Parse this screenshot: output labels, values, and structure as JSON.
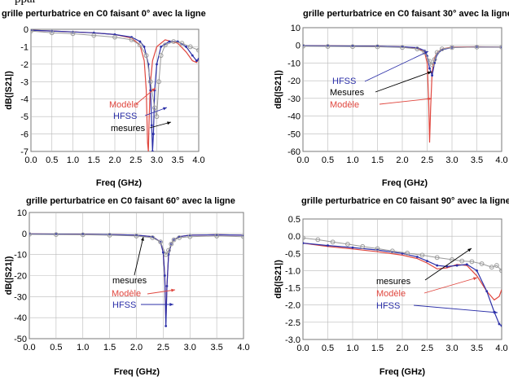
{
  "page": {
    "top_fragment_text": "ppar"
  },
  "colors": {
    "hfss": "#2b2fa8",
    "modele": "#e0473f",
    "mesures": "#9a9a9a",
    "grid": "#b9b9b9",
    "annotation_black": "#000000"
  },
  "chart_data": [
    {
      "type": "line",
      "title": "grille perturbatrice en C0 faisant 0° avec la ligne",
      "xlabel": "Freq (GHz)",
      "ylabel": "dB(|S21|)",
      "xlim": [
        0,
        4
      ],
      "ylim": [
        -7,
        0
      ],
      "xticks": [
        "0.0",
        "0.5",
        "1.0",
        "1.5",
        "2.0",
        "2.5",
        "3.0",
        "3.5",
        "4.0"
      ],
      "yticks": [
        "0",
        "-1",
        "-2",
        "-3",
        "-4",
        "-5",
        "-6",
        "-7"
      ],
      "grid": true,
      "series": [
        {
          "name": "Modèle",
          "x": [
            0,
            0.5,
            1,
            1.5,
            2,
            2.4,
            2.6,
            2.7,
            2.75,
            2.78,
            2.8,
            2.82,
            2.85,
            2.9,
            3.0,
            3.2,
            3.5,
            3.7,
            3.85,
            3.95,
            4.0
          ],
          "y": [
            -0.05,
            -0.1,
            -0.15,
            -0.2,
            -0.3,
            -0.5,
            -0.9,
            -1.8,
            -3.5,
            -6.5,
            -7.0,
            -5.0,
            -3.0,
            -1.8,
            -1.0,
            -0.6,
            -0.8,
            -1.3,
            -1.8,
            -1.9,
            -1.7
          ]
        },
        {
          "name": "HFSS",
          "x": [
            0,
            0.5,
            1,
            1.5,
            2,
            2.4,
            2.6,
            2.7,
            2.8,
            2.85,
            2.88,
            2.9,
            2.92,
            2.95,
            3.0,
            3.1,
            3.3,
            3.5,
            3.7,
            3.85,
            3.95,
            4.0
          ],
          "y": [
            -0.05,
            -0.1,
            -0.15,
            -0.2,
            -0.3,
            -0.45,
            -0.7,
            -1.0,
            -2.0,
            -3.5,
            -5.5,
            -7.0,
            -6.0,
            -3.5,
            -2.0,
            -1.0,
            -0.7,
            -0.7,
            -1.0,
            -1.5,
            -1.8,
            -1.7
          ]
        },
        {
          "name": "mesures",
          "x": [
            0,
            0.5,
            1,
            1.5,
            2,
            2.4,
            2.6,
            2.75,
            2.85,
            2.95,
            3.0,
            3.05,
            3.1,
            3.2,
            3.4,
            3.6,
            3.8,
            4.0
          ],
          "y": [
            -0.1,
            -0.2,
            -0.25,
            -0.35,
            -0.45,
            -0.6,
            -0.9,
            -1.5,
            -3.0,
            -4.5,
            -5.0,
            -3.0,
            -1.5,
            -0.9,
            -0.7,
            -0.8,
            -1.0,
            -1.2
          ]
        }
      ],
      "annotations": [
        {
          "text": "Modèle",
          "color": "#e0473f"
        },
        {
          "text": "HFSS",
          "color": "#2b2fa8"
        },
        {
          "text": "mesures",
          "color": "#000000"
        }
      ]
    },
    {
      "type": "line",
      "title": "grille perturbatrice en C0 faisant 30° avec la ligne",
      "xlabel": "Freq (GHz)",
      "ylabel": "dB(|S21|)",
      "xlim": [
        0,
        4
      ],
      "ylim": [
        -60,
        10
      ],
      "xticks": [
        "0.0",
        "0.5",
        "1.0",
        "1.5",
        "2.0",
        "2.5",
        "3.0",
        "3.5",
        "4.0"
      ],
      "yticks": [
        "10",
        "0",
        "-10",
        "-20",
        "-30",
        "-40",
        "-50",
        "-60"
      ],
      "grid": true,
      "series": [
        {
          "name": "Modèle",
          "x": [
            0,
            0.5,
            1,
            1.5,
            2,
            2.3,
            2.45,
            2.5,
            2.53,
            2.55,
            2.57,
            2.6,
            2.65,
            2.7,
            2.8,
            3.0,
            3.5,
            4.0
          ],
          "y": [
            -0.2,
            -0.3,
            -0.4,
            -0.5,
            -0.8,
            -1.5,
            -4,
            -10,
            -30,
            -55,
            -35,
            -15,
            -7,
            -4,
            -2,
            -1,
            -0.8,
            -1
          ]
        },
        {
          "name": "HFSS",
          "x": [
            0,
            0.5,
            1,
            1.5,
            2,
            2.3,
            2.45,
            2.5,
            2.55,
            2.6,
            2.65,
            2.7,
            2.8,
            3.0,
            3.5,
            4.0
          ],
          "y": [
            -0.2,
            -0.3,
            -0.4,
            -0.5,
            -0.8,
            -1.3,
            -3,
            -6,
            -13,
            -17,
            -10,
            -5,
            -2.5,
            -1.2,
            -0.9,
            -1
          ]
        },
        {
          "name": "Mesures",
          "x": [
            0,
            0.5,
            1,
            1.5,
            2,
            2.3,
            2.45,
            2.55,
            2.6,
            2.65,
            2.7,
            2.8,
            3.0,
            3.5,
            4.0
          ],
          "y": [
            -0.5,
            -0.6,
            -0.7,
            -0.8,
            -1.2,
            -2,
            -4,
            -9,
            -11,
            -8,
            -4,
            -2,
            -1.2,
            -1,
            -1
          ]
        }
      ],
      "annotations": [
        {
          "text": "HFSS",
          "color": "#2b2fa8"
        },
        {
          "text": "Mesures",
          "color": "#000000"
        },
        {
          "text": "Modèle",
          "color": "#e0473f"
        }
      ]
    },
    {
      "type": "line",
      "title": "grille perturbatrice en C0 faisant 60° avec la ligne",
      "xlabel": "Freq (GHz)",
      "ylabel": "dB(|S21|)",
      "xlim": [
        0,
        4
      ],
      "ylim": [
        -50,
        10
      ],
      "xticks": [
        "0.0",
        "0.5",
        "1.0",
        "1.5",
        "2.0",
        "2.5",
        "3.0",
        "3.5",
        "4.0"
      ],
      "yticks": [
        "10",
        "0",
        "-10",
        "-20",
        "-30",
        "-40",
        "-50"
      ],
      "grid": true,
      "series": [
        {
          "name": "Modèle",
          "x": [
            0,
            0.5,
            1,
            1.5,
            2,
            2.3,
            2.45,
            2.5,
            2.53,
            2.55,
            2.57,
            2.6,
            2.65,
            2.7,
            2.8,
            3.0,
            3.5,
            4.0
          ],
          "y": [
            -0.2,
            -0.3,
            -0.4,
            -0.5,
            -0.8,
            -1.5,
            -4,
            -9,
            -20,
            -42,
            -25,
            -10,
            -5,
            -3,
            -1.5,
            -0.8,
            -0.6,
            -0.8
          ]
        },
        {
          "name": "HFSS",
          "x": [
            0,
            0.5,
            1,
            1.5,
            2,
            2.3,
            2.45,
            2.5,
            2.53,
            2.55,
            2.57,
            2.6,
            2.65,
            2.7,
            2.8,
            3.0,
            3.5,
            4.0
          ],
          "y": [
            -0.2,
            -0.3,
            -0.4,
            -0.5,
            -0.8,
            -1.5,
            -4,
            -9,
            -20,
            -44,
            -25,
            -10,
            -5,
            -3,
            -1.5,
            -0.8,
            -0.6,
            -0.8
          ]
        },
        {
          "name": "mesures",
          "x": [
            0,
            0.5,
            1,
            1.5,
            2,
            2.3,
            2.45,
            2.55,
            2.6,
            2.65,
            2.7,
            2.8,
            3.0,
            3.5,
            4.0
          ],
          "y": [
            -0.4,
            -0.5,
            -0.6,
            -0.8,
            -1.2,
            -2,
            -4,
            -10,
            -8,
            -5,
            -3,
            -2,
            -1.5,
            -1.2,
            -1.5
          ]
        }
      ],
      "annotations": [
        {
          "text": "mesures",
          "color": "#000000"
        },
        {
          "text": "Modèle",
          "color": "#e0473f"
        },
        {
          "text": "HFSS",
          "color": "#2b2fa8"
        }
      ]
    },
    {
      "type": "line",
      "title": "grille perturbatrice en C0 faisant 90° avec la ligne",
      "xlabel": "Freq (GHz)",
      "ylabel": "dB(|S21|)",
      "xlim": [
        0,
        4
      ],
      "ylim": [
        -3,
        0.5
      ],
      "xticks": [
        "0.0",
        "0.5",
        "1.0",
        "1.5",
        "2.0",
        "2.5",
        "3.0",
        "3.5",
        "4.0"
      ],
      "yticks": [
        "0.5",
        "0.0",
        "-0.5",
        "-1.0",
        "-1.5",
        "-2.0",
        "-2.5",
        "-3.0"
      ],
      "grid": true,
      "series": [
        {
          "name": "Modèle",
          "x": [
            0,
            0.5,
            1,
            1.5,
            2,
            2.3,
            2.5,
            2.7,
            2.9,
            3.1,
            3.3,
            3.5,
            3.7,
            3.85,
            3.95,
            4.0
          ],
          "y": [
            -0.2,
            -0.3,
            -0.37,
            -0.45,
            -0.55,
            -0.65,
            -0.78,
            -0.95,
            -0.92,
            -0.82,
            -0.85,
            -1.15,
            -1.6,
            -1.85,
            -1.75,
            -1.55
          ]
        },
        {
          "name": "HFSS",
          "x": [
            0,
            0.5,
            1,
            1.5,
            2,
            2.3,
            2.5,
            2.7,
            2.9,
            3.1,
            3.3,
            3.5,
            3.7,
            3.85,
            3.95,
            4.0
          ],
          "y": [
            -0.2,
            -0.27,
            -0.33,
            -0.4,
            -0.5,
            -0.6,
            -0.72,
            -0.85,
            -0.88,
            -0.85,
            -0.82,
            -1.0,
            -1.6,
            -2.2,
            -2.55,
            -2.6
          ]
        },
        {
          "name": "mesures",
          "x": [
            0,
            0.3,
            0.6,
            0.9,
            1.2,
            1.5,
            1.8,
            2.1,
            2.4,
            2.7,
            3.0,
            3.2,
            3.4,
            3.6,
            3.8,
            3.9,
            4.0
          ],
          "y": [
            -0.05,
            -0.1,
            -0.17,
            -0.23,
            -0.3,
            -0.36,
            -0.43,
            -0.49,
            -0.55,
            -0.62,
            -0.68,
            -0.72,
            -0.74,
            -0.8,
            -0.9,
            -0.85,
            -1.0
          ]
        }
      ],
      "annotations": [
        {
          "text": "mesures",
          "color": "#000000"
        },
        {
          "text": "Modèle",
          "color": "#e0473f"
        },
        {
          "text": "HFSS",
          "color": "#2b2fa8"
        }
      ]
    }
  ]
}
